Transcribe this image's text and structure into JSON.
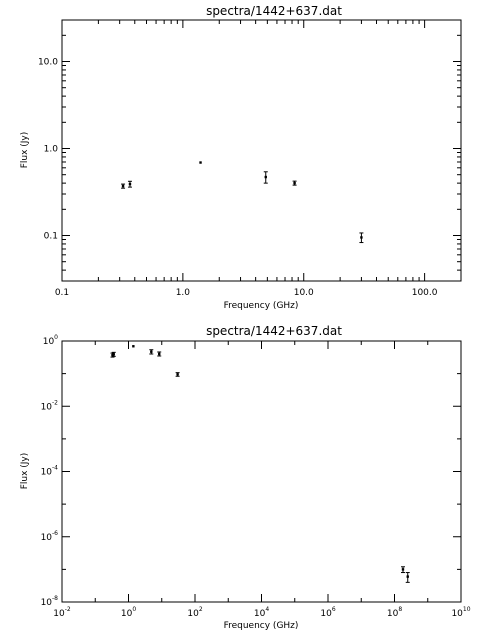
{
  "chart_data": [
    {
      "type": "scatter",
      "title": "spectra/1442+637.dat",
      "xlabel": "Frequency (GHz)",
      "ylabel": "Flux (Jy)",
      "xscale": "log",
      "yscale": "log",
      "xlim": [
        0.1,
        200
      ],
      "ylim": [
        0.03,
        30
      ],
      "xtick_labels": [
        "0.1",
        "1.0",
        "10.0",
        "100.0"
      ],
      "ytick_labels": [
        "0.1",
        "1.0",
        "10.0"
      ],
      "series": [
        {
          "points": [
            {
              "x": 0.32,
              "y": 0.37,
              "err": 0.02
            },
            {
              "x": 0.365,
              "y": 0.39,
              "err": 0.03
            },
            {
              "x": 1.4,
              "y": 0.69,
              "err": 0.0
            },
            {
              "x": 4.85,
              "y": 0.47,
              "err": 0.07
            },
            {
              "x": 8.4,
              "y": 0.4,
              "err": 0.01
            },
            {
              "x": 30.0,
              "y": 0.095,
              "err": 0.012
            }
          ]
        }
      ]
    },
    {
      "type": "scatter",
      "title": "spectra/1442+637.dat",
      "xlabel": "Frequency (GHz)",
      "ylabel": "Flux (Jy)",
      "xscale": "log",
      "yscale": "log",
      "xlim": [
        0.01,
        10000000000
      ],
      "ylim": [
        1e-08,
        1
      ],
      "xtick_labels": [
        {
          "base": "10",
          "exp": "-2"
        },
        {
          "base": "10",
          "exp": "0"
        },
        {
          "base": "10",
          "exp": "2"
        },
        {
          "base": "10",
          "exp": "4"
        },
        {
          "base": "10",
          "exp": "6"
        },
        {
          "base": "10",
          "exp": "8"
        },
        {
          "base": "10",
          "exp": "10"
        }
      ],
      "ytick_labels": [
        {
          "base": "10",
          "exp": "-8"
        },
        {
          "base": "10",
          "exp": "-6"
        },
        {
          "base": "10",
          "exp": "-4"
        },
        {
          "base": "10",
          "exp": "-2"
        },
        {
          "base": "10",
          "exp": "0"
        }
      ],
      "series": [
        {
          "points": [
            {
              "x": 0.33,
              "y": 0.37,
              "err": 0.02
            },
            {
              "x": 0.36,
              "y": 0.39,
              "err": 0.02
            },
            {
              "x": 1.4,
              "y": 0.69,
              "err": 0.0
            },
            {
              "x": 4.85,
              "y": 0.47,
              "err": 0.07
            },
            {
              "x": 8.4,
              "y": 0.4,
              "err": 0.01
            },
            {
              "x": 30.0,
              "y": 0.095,
              "err": 0.012
            },
            {
              "x": 180000000,
              "y": 1e-07,
              "err": 2e-08
            },
            {
              "x": 250000000,
              "y": 6e-08,
              "err": 2e-08
            }
          ]
        }
      ]
    }
  ]
}
